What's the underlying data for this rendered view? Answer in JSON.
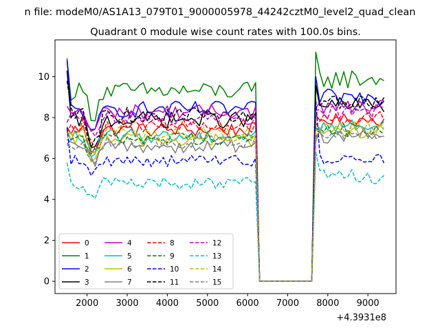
{
  "figure": {
    "suptitle": "n file: modeM0/AS1A13_079T01_9000005978_44242cztM0_level2_quad_clean"
  },
  "chart_data": {
    "type": "line",
    "title": "Quadrant 0 module wise count rates with 100.0s bins.",
    "xlabel": "",
    "ylabel": "",
    "x_offset_label": "+4.3931e8",
    "xlim": [
      1200,
      9700
    ],
    "ylim": [
      -0.6,
      11.8
    ],
    "x_ticks": [
      2000,
      3000,
      4000,
      5000,
      6000,
      7000,
      8000,
      9000
    ],
    "x_tick_labels": [
      "2000",
      "3000",
      "4000",
      "5000",
      "6000",
      "7000",
      "8000",
      "9000"
    ],
    "y_ticks": [
      0,
      2,
      4,
      6,
      8,
      10
    ],
    "y_tick_labels": [
      "0",
      "2",
      "4",
      "6",
      "8",
      "10"
    ],
    "grid": false,
    "legend": {
      "location": "lower-left",
      "ncol": 4
    },
    "x_segments": [
      {
        "start": 1500,
        "end": 6200,
        "step": 100
      },
      {
        "start": 6300,
        "end": 7600,
        "step": 100
      },
      {
        "start": 7700,
        "end": 9400,
        "step": 100
      }
    ],
    "series": [
      {
        "name": "0",
        "color": "#ff0000",
        "dash": "solid",
        "segments": [
          {
            "base": 7.4,
            "amp": 0.35,
            "dip": 1.1
          },
          {
            "level": 0
          },
          {
            "base": 7.9,
            "amp": 0.3
          }
        ]
      },
      {
        "name": "1",
        "color": "#008000",
        "dash": "solid",
        "segments": [
          {
            "base": 9.3,
            "amp": 0.45,
            "dip": 1.3,
            "start": 10.9
          },
          {
            "level": 0
          },
          {
            "base": 9.9,
            "amp": 0.5,
            "start": 11.2
          }
        ]
      },
      {
        "name": "2",
        "color": "#0000ff",
        "dash": "solid",
        "segments": [
          {
            "base": 8.4,
            "amp": 0.4,
            "dip": 1.6,
            "start": 10.8
          },
          {
            "level": 0
          },
          {
            "base": 9.0,
            "amp": 0.4,
            "start": 10.0
          }
        ]
      },
      {
        "name": "3",
        "color": "#000000",
        "dash": "solid",
        "segments": [
          {
            "base": 7.9,
            "amp": 0.4,
            "dip": 1.9,
            "start": 10.3
          },
          {
            "level": 0
          },
          {
            "base": 8.6,
            "amp": 0.4,
            "start": 9.6
          }
        ]
      },
      {
        "name": "4",
        "color": "#bf00bf",
        "dash": "solid",
        "segments": [
          {
            "base": 8.3,
            "amp": 0.35,
            "dip": 1.2
          },
          {
            "level": 0
          },
          {
            "base": 8.5,
            "amp": 0.35
          }
        ]
      },
      {
        "name": "5",
        "color": "#00bfbf",
        "dash": "solid",
        "segments": [
          {
            "base": 7.1,
            "amp": 0.35,
            "dip": 1.1
          },
          {
            "level": 0
          },
          {
            "base": 7.6,
            "amp": 0.35
          }
        ]
      },
      {
        "name": "6",
        "color": "#bfbf00",
        "dash": "solid",
        "segments": [
          {
            "base": 6.9,
            "amp": 0.35,
            "dip": 1.0
          },
          {
            "level": 0
          },
          {
            "base": 7.3,
            "amp": 0.35
          }
        ]
      },
      {
        "name": "7",
        "color": "#808080",
        "dash": "solid",
        "segments": [
          {
            "base": 6.6,
            "amp": 0.35,
            "dip": 1.0
          },
          {
            "level": 0
          },
          {
            "base": 7.1,
            "amp": 0.35
          }
        ]
      },
      {
        "name": "8",
        "color": "#ff0000",
        "dash": "dashed",
        "segments": [
          {
            "base": 7.6,
            "amp": 0.35,
            "dip": 1.1
          },
          {
            "level": 0
          },
          {
            "base": 8.0,
            "amp": 0.35
          }
        ]
      },
      {
        "name": "9",
        "color": "#008000",
        "dash": "dashed",
        "segments": [
          {
            "base": 7.0,
            "amp": 0.35,
            "dip": 1.0
          },
          {
            "level": 0
          },
          {
            "base": 7.4,
            "amp": 0.35
          }
        ]
      },
      {
        "name": "10",
        "color": "#0000ff",
        "dash": "dashed",
        "segments": [
          {
            "base": 5.9,
            "amp": 0.3,
            "dip": 0.8,
            "start": 7.5
          },
          {
            "level": 0
          },
          {
            "base": 6.0,
            "amp": 0.25,
            "start": 8.9
          }
        ]
      },
      {
        "name": "11",
        "color": "#000000",
        "dash": "dashed",
        "segments": [
          {
            "base": 8.1,
            "amp": 0.4,
            "dip": 1.6,
            "start": 9.8
          },
          {
            "level": 0
          },
          {
            "base": 8.7,
            "amp": 0.35,
            "start": 9.6
          }
        ]
      },
      {
        "name": "12",
        "color": "#bf00bf",
        "dash": "dashed",
        "segments": [
          {
            "base": 8.0,
            "amp": 0.35,
            "dip": 1.2
          },
          {
            "level": 0
          },
          {
            "base": 8.3,
            "amp": 0.35
          }
        ]
      },
      {
        "name": "13",
        "color": "#00bfbf",
        "dash": "dashed",
        "segments": [
          {
            "base": 4.8,
            "amp": 0.3,
            "dip": 0.9,
            "start": 5.8
          },
          {
            "level": 0
          },
          {
            "base": 5.1,
            "amp": 0.35,
            "start": 6.3
          }
        ]
      },
      {
        "name": "14",
        "color": "#bfbf00",
        "dash": "dashed",
        "segments": [
          {
            "base": 7.2,
            "amp": 0.35,
            "dip": 1.0
          },
          {
            "level": 0
          },
          {
            "base": 7.5,
            "amp": 0.35
          }
        ]
      },
      {
        "name": "15",
        "color": "#808080",
        "dash": "dashed",
        "segments": [
          {
            "base": 6.8,
            "amp": 0.35,
            "dip": 1.0
          },
          {
            "level": 0
          },
          {
            "base": 7.2,
            "amp": 0.35
          }
        ]
      }
    ]
  }
}
